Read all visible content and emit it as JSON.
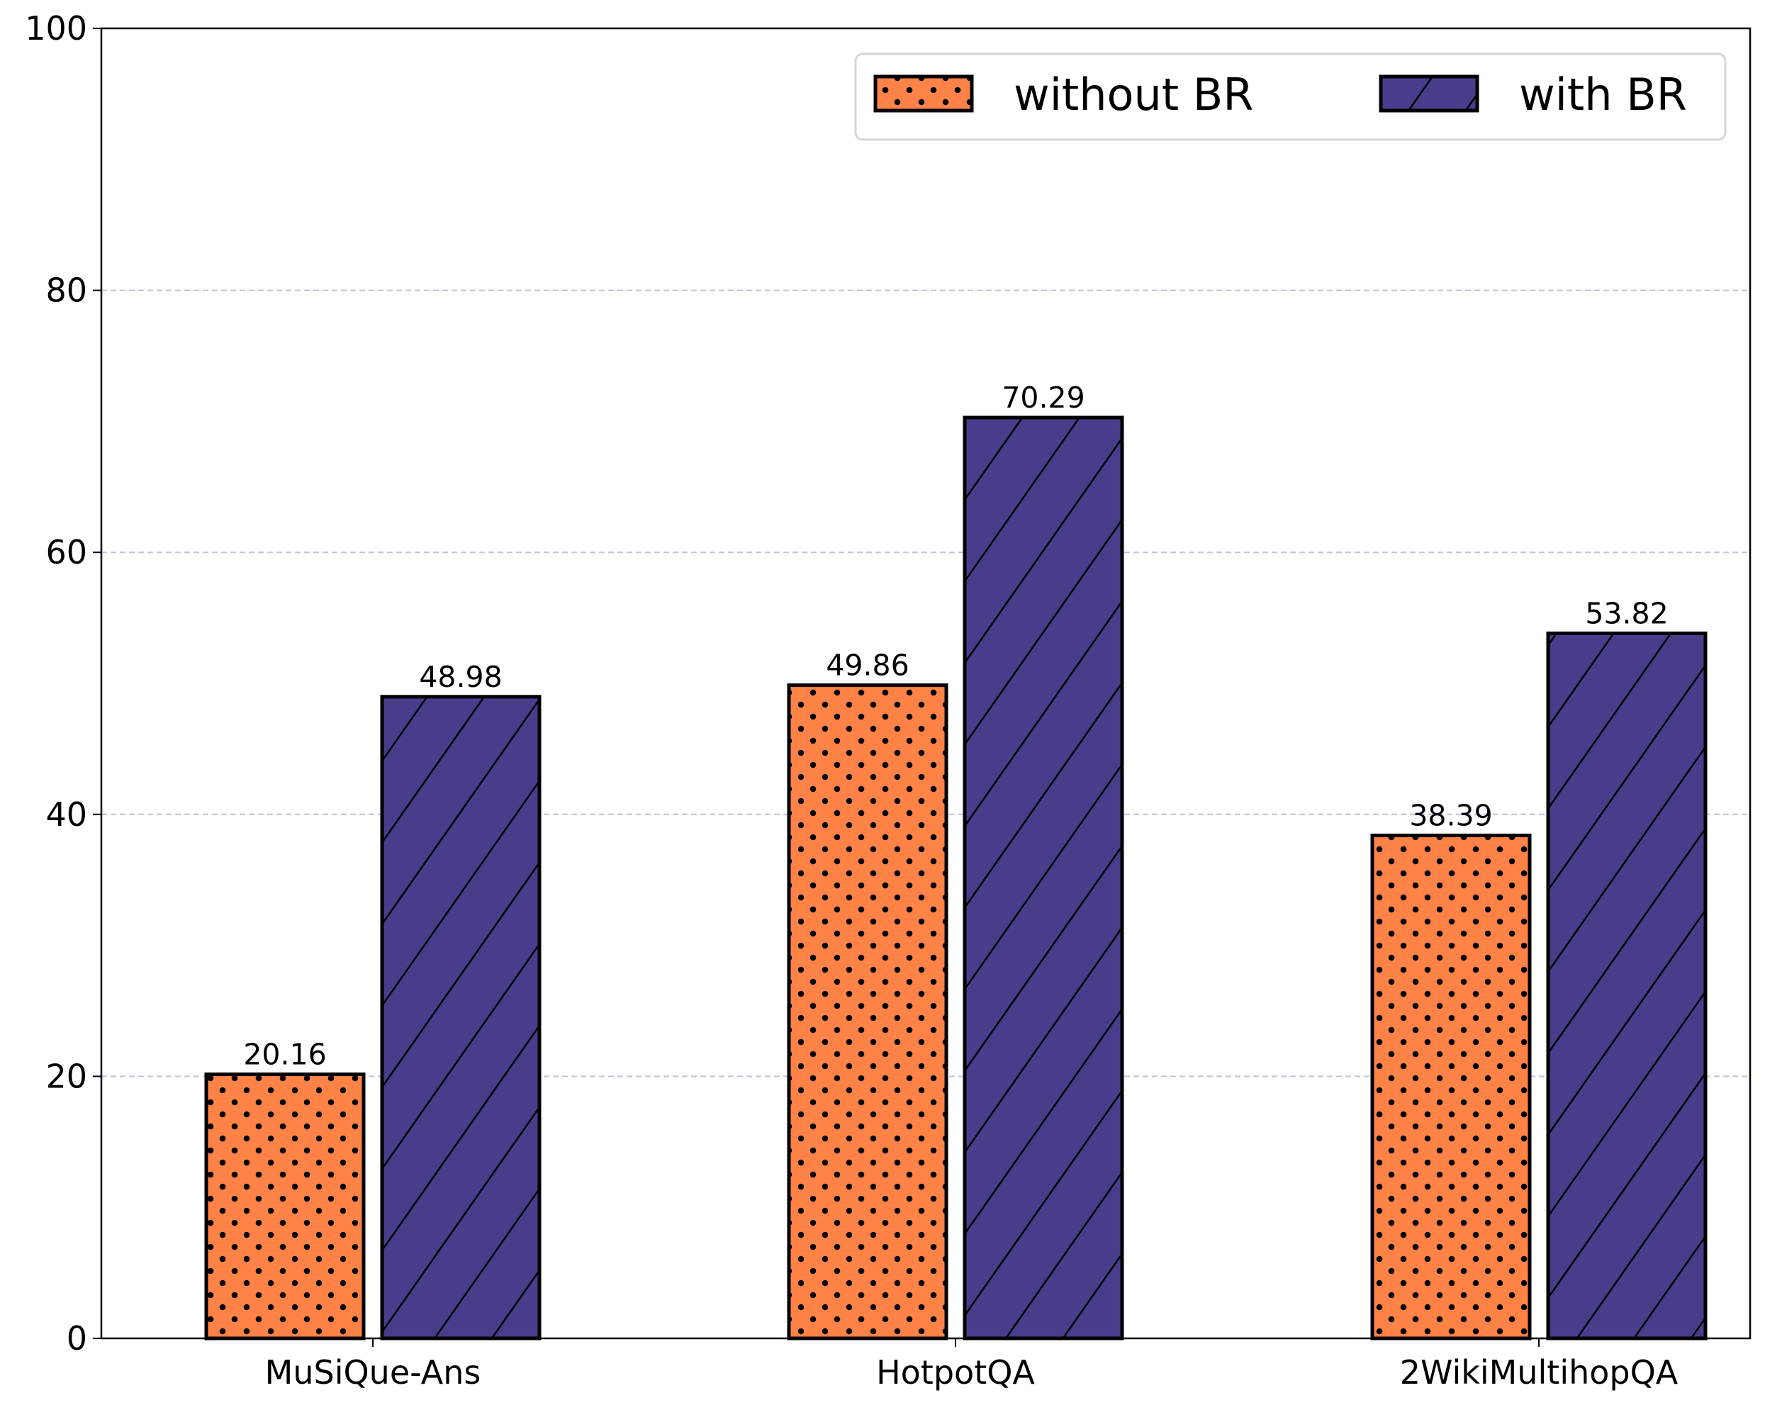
{
  "chart_data": {
    "type": "bar",
    "title": "",
    "xlabel": "",
    "ylabel": "",
    "categories": [
      "MuSiQue-Ans",
      "HotpotQA",
      "2WikiMultihopQA"
    ],
    "series": [
      {
        "name": "without BR",
        "values": [
          20.16,
          49.86,
          38.39
        ],
        "color": "#FF8247",
        "hatch": "dots"
      },
      {
        "name": "with BR",
        "values": [
          48.98,
          70.29,
          53.82
        ],
        "color": "#483D8B",
        "hatch": "diagonal"
      }
    ],
    "data_labels": [
      [
        "20.16",
        "49.86",
        "38.39"
      ],
      [
        "48.98",
        "70.29",
        "53.82"
      ]
    ],
    "ylim": [
      0,
      100
    ],
    "yticks": [
      "0",
      "20",
      "40",
      "60",
      "80",
      "100"
    ],
    "grid": "horizontal dashed",
    "legend_placement": "top-right"
  }
}
